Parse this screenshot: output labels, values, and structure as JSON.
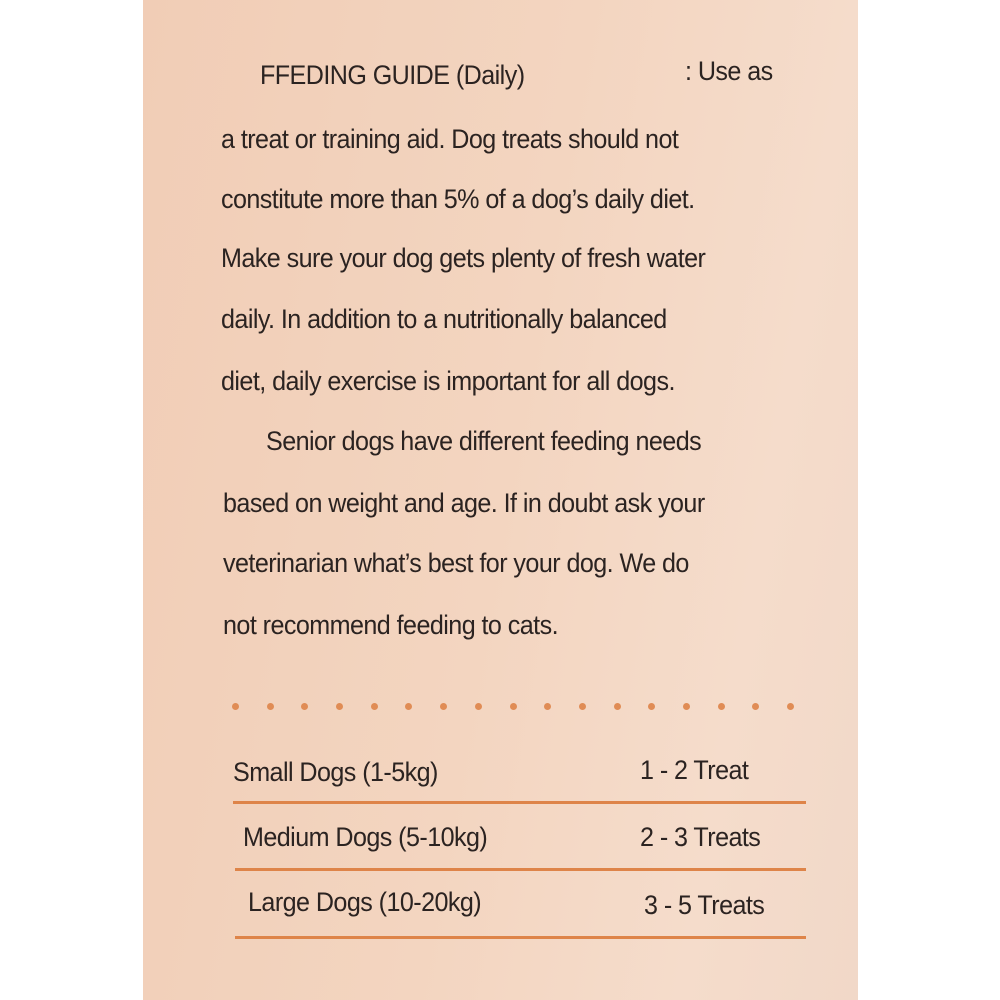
{
  "guide": {
    "heading": "FFEDING GUIDE (Daily)",
    "heading_suffix": ": Use as",
    "lines": [
      "a treat or training aid. Dog treats should not",
      "constitute more than 5% of a dog’s daily diet.",
      "Make sure your dog gets plenty of fresh water",
      "daily. In addition to a nutritionally balanced",
      "diet, daily exercise is important for all dogs.",
      "Senior dogs have different feeding needs",
      "based on weight and age. If in doubt ask your",
      "veterinarian what’s best for your dog. We do",
      "not recommend feeding to cats."
    ]
  },
  "table": {
    "rows": [
      {
        "size": "Small Dogs (1-5kg)",
        "amount": "1 - 2 Treat"
      },
      {
        "size": "Medium Dogs (5-10kg)",
        "amount": "2 - 3 Treats"
      },
      {
        "size": "Large Dogs (10-20kg)",
        "amount": "3 - 5 Treats"
      }
    ]
  },
  "colors": {
    "accent": "#de8449",
    "background": "#f3d5c0",
    "text": "#2b2321"
  }
}
